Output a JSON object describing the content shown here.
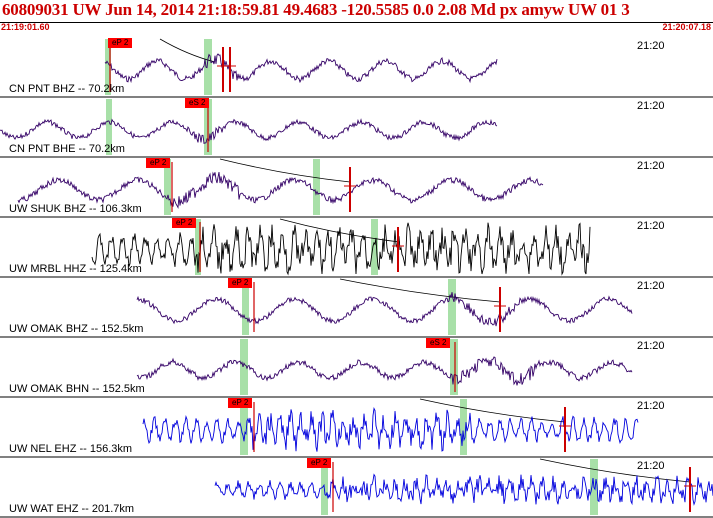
{
  "header": {
    "title": "60809031 UW Jun 14, 2014 21:18:59.81   49.4683 -120.5585  0.0 2.08 Md px amyw UW 01   3",
    "time_start": "21:19:01.60",
    "time_end": "21:20:07.18"
  },
  "colors": {
    "title_red": "#cc0000",
    "purple_trace": "#330066",
    "black_trace": "#000000",
    "blue_trace": "#0000dd",
    "pick_tag": "#ff0000",
    "window_green": "#a8e0a8"
  },
  "traces": [
    {
      "label": "CN PNT BHZ -- 70.2km",
      "time_label": "21:20",
      "pick_label": "eP 2"
    },
    {
      "label": "CN PNT BHE -- 70.2km",
      "time_label": "21:20",
      "pick_label": "eS 2"
    },
    {
      "label": "UW SHUK BHZ -- 106.3km",
      "time_label": "21:20",
      "pick_label": "eP 2"
    },
    {
      "label": "UW MRBL HHZ -- 125.4km",
      "time_label": "21:20",
      "pick_label": "eP 2"
    },
    {
      "label": "UW OMAK BHZ -- 152.5km",
      "time_label": "21:20",
      "pick_label": "eP 2"
    },
    {
      "label": "UW OMAK BHN -- 152.5km",
      "time_label": "21:20",
      "pick_label": "eS 2"
    },
    {
      "label": "UW NEL EHZ -- 156.3km",
      "time_label": "21:20",
      "pick_label": "eP 2"
    },
    {
      "label": "UW WAT EHZ -- 201.7km",
      "time_label": "21:20",
      "pick_label": "eP 2"
    }
  ]
}
